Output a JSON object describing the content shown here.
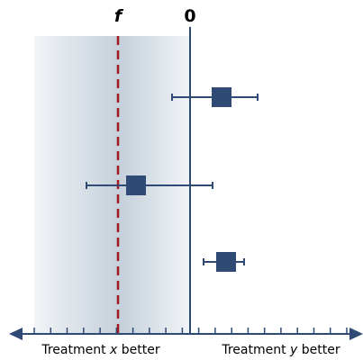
{
  "labels": {
    "null_line": "0",
    "reference_line": "f",
    "left_text_prefix": "Treatment ",
    "left_text_var": "x",
    "left_text_suffix": " better",
    "right_text_prefix": "Treatment ",
    "right_text_var": "y",
    "right_text_suffix": " better"
  },
  "colors": {
    "marker": "#2e4a75",
    "axis": "#2e4a75",
    "reference_line": "#a3191f",
    "shade_dark": "#c5d0da",
    "shade_light": "#f1f4f7"
  },
  "axis": {
    "tick_count": 20
  },
  "estimates": [
    {
      "value": 7,
      "lower": -4,
      "upper": 15
    },
    {
      "value": -12,
      "lower": -23,
      "upper": 5
    },
    {
      "value": 8,
      "lower": 3,
      "upper": 12
    }
  ]
}
